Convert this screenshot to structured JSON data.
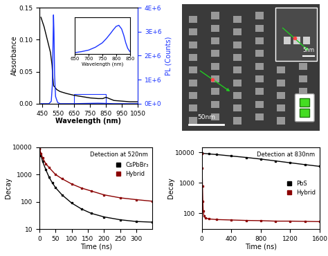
{
  "chart_data": [
    {
      "type": "line",
      "x_label": "Wavelength (nm)",
      "y_label": "Absorbance",
      "y2_label": "PL (Counts)",
      "xlim": [
        430,
        1050
      ],
      "xticks": [
        450,
        550,
        650,
        750,
        850,
        950,
        1050
      ],
      "ylim": [
        0,
        0.15
      ],
      "yticks": [
        {
          "value": 0,
          "label": "0.00"
        },
        {
          "value": 0.05,
          "label": "0.05"
        },
        {
          "value": 0.1,
          "label": "0.10"
        },
        {
          "value": 0.15,
          "label": "0.15"
        }
      ],
      "y2lim": [
        0,
        4000000
      ],
      "y2ticks": [
        {
          "value": 0,
          "label": "0E+0"
        },
        {
          "value": 1000000,
          "label": "1E+6"
        },
        {
          "value": 2000000,
          "label": "2E+6"
        },
        {
          "value": 3000000,
          "label": "3E+6"
        },
        {
          "value": 4000000,
          "label": "4E+6"
        }
      ],
      "series": [
        {
          "color": "#000000",
          "line_style": "solid",
          "x": [
            440,
            460,
            480,
            500,
            510,
            515,
            520,
            540,
            560,
            600,
            650,
            700,
            750,
            800,
            830,
            850,
            870,
            900,
            950,
            1000,
            1050
          ],
          "values": [
            0.135,
            0.12,
            0.1,
            0.08,
            0.06,
            0.04,
            0.028,
            0.022,
            0.019,
            0.016,
            0.013,
            0.011,
            0.009,
            0.008,
            0.008,
            0.01,
            0.008,
            0.005,
            0.004,
            0.003,
            0.003
          ]
        },
        {
          "color": "#1a33ff",
          "line_style": "solid",
          "axis": "y2",
          "x": [
            440,
            490,
            505,
            512,
            516,
            519,
            522,
            526,
            532,
            545,
            560,
            650,
            800,
            900,
            1050
          ],
          "values": [
            0,
            0,
            100000,
            800000,
            2500000,
            3700000,
            3000000,
            1200000,
            300000,
            50000,
            0,
            0,
            20000,
            0,
            0
          ]
        }
      ],
      "inset": {
        "type": "line",
        "x_label": "Wavelength (nm)",
        "xlim": [
          650,
          850
        ],
        "xticks": [
          650,
          700,
          750,
          800,
          850
        ],
        "ylim": [
          0,
          1
        ],
        "tick_labels": "x",
        "series": [
          {
            "color": "#1a33ff",
            "line_style": "solid",
            "x": [
              650,
              675,
              700,
              725,
              750,
              765,
              780,
              790,
              800,
              810,
              820,
              828,
              835,
              842,
              850
            ],
            "values": [
              0.03,
              0.06,
              0.1,
              0.18,
              0.3,
              0.42,
              0.56,
              0.66,
              0.75,
              0.78,
              0.68,
              0.5,
              0.3,
              0.15,
              0.06
            ]
          }
        ]
      }
    },
    {
      "type": "line",
      "log": "y",
      "x_label": "Time (ns)",
      "y_label": "Decay",
      "annotation": "Detection at 520nm",
      "xlim": [
        0,
        350
      ],
      "xticks": [
        0,
        50,
        100,
        150,
        200,
        250,
        300
      ],
      "ylim": [
        10,
        10000
      ],
      "yticks": [
        10,
        100,
        1000,
        10000
      ],
      "legend": "upper right",
      "series": [
        {
          "name": "CsPbBr₃",
          "color": "#000000",
          "marker": "square",
          "x": [
            0,
            5,
            10,
            20,
            30,
            40,
            50,
            70,
            100,
            130,
            160,
            200,
            250,
            300,
            350
          ],
          "values": [
            9000,
            5000,
            3000,
            1500,
            800,
            500,
            330,
            180,
            90,
            55,
            38,
            28,
            22,
            19,
            18
          ]
        },
        {
          "name": "Hybrid",
          "color": "#8b0000",
          "marker": "square",
          "x": [
            0,
            5,
            10,
            20,
            30,
            50,
            70,
            100,
            130,
            160,
            200,
            250,
            300,
            350
          ],
          "values": [
            9000,
            6000,
            4000,
            2500,
            1800,
            1000,
            700,
            450,
            320,
            250,
            180,
            140,
            120,
            105
          ]
        }
      ]
    },
    {
      "type": "line",
      "log": "y",
      "x_label": "Time (ns)",
      "y_label": "Decay",
      "annotation": "Detection at 830nm",
      "xlim": [
        0,
        1600
      ],
      "xticks": [
        0,
        400,
        800,
        1200,
        1600
      ],
      "ylim": [
        30,
        15000
      ],
      "yticks": [
        100,
        1000,
        10000
      ],
      "legend": "center right",
      "series": [
        {
          "name": "PbS",
          "color": "#000000",
          "marker": "square",
          "x": [
            0,
            100,
            200,
            400,
            600,
            800,
            1000,
            1200,
            1400,
            1600
          ],
          "values": [
            9500,
            9000,
            8600,
            7700,
            6900,
            6100,
            5300,
            4600,
            4000,
            3500
          ]
        },
        {
          "name": "Hybrid",
          "color": "#8b0000",
          "marker": "square",
          "x": [
            0,
            5,
            10,
            15,
            20,
            30,
            50,
            100,
            200,
            400,
            600,
            800,
            1000,
            1200,
            1400,
            1600
          ],
          "values": [
            9000,
            3000,
            800,
            250,
            120,
            80,
            70,
            65,
            62,
            60,
            58,
            57,
            55,
            55,
            54,
            53
          ]
        }
      ]
    }
  ],
  "image": {
    "type": "micrograph",
    "scale_bar_main": "50nm",
    "scale_bar_inset": "5nm"
  }
}
